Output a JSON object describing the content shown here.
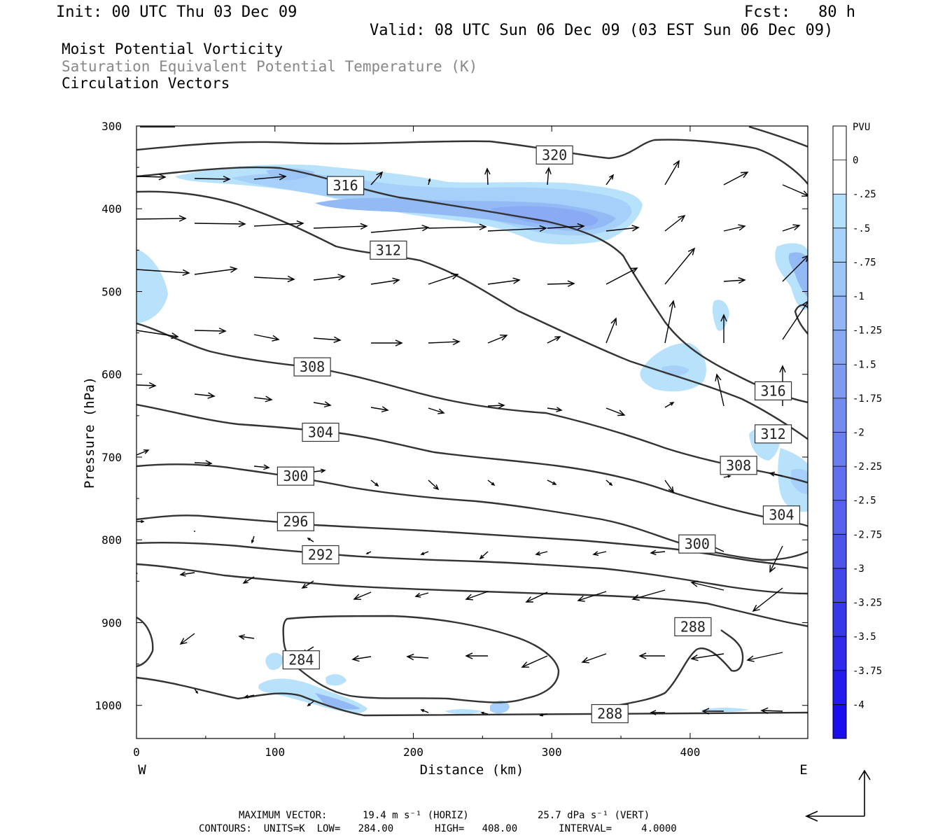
{
  "header": {
    "init": "Init: 00 UTC Thu 03 Dec 09",
    "fcst": "Fcst:   80 h",
    "valid": "Valid: 08 UTC Sun 06 Dec 09 (03 EST Sun 06 Dec 09)"
  },
  "titles": {
    "line1": "Moist Potential Vorticity",
    "line2": "Saturation Equivalent Potential Temperature (K)",
    "line3": "Circulation Vectors"
  },
  "chart_data": {
    "type": "cross-section",
    "xlabel": "Distance (km)",
    "ylabel": "Pressure (hPa)",
    "xlim": [
      0,
      485
    ],
    "ylim": [
      300,
      1040
    ],
    "y_inverted": true,
    "x_ticks": [
      "0",
      "100",
      "200",
      "300",
      "400"
    ],
    "y_ticks": [
      "300",
      "400",
      "500",
      "600",
      "700",
      "800",
      "900",
      "1000"
    ],
    "x_end_labels": {
      "left": "W",
      "right": "E"
    },
    "contour_labels": [
      {
        "text": "320",
        "x": 302,
        "p": 335
      },
      {
        "text": "316",
        "x": 151,
        "p": 372
      },
      {
        "text": "312",
        "x": 182,
        "p": 450
      },
      {
        "text": "308",
        "x": 127,
        "p": 591
      },
      {
        "text": "304",
        "x": 133,
        "p": 670
      },
      {
        "text": "300",
        "x": 115,
        "p": 723
      },
      {
        "text": "296",
        "x": 115,
        "p": 778
      },
      {
        "text": "292",
        "x": 133,
        "p": 818
      },
      {
        "text": "288",
        "x": 402,
        "p": 905
      },
      {
        "text": "284",
        "x": 119,
        "p": 945
      },
      {
        "text": "288",
        "x": 342,
        "p": 1010
      },
      {
        "text": "316",
        "x": 460,
        "p": 620
      },
      {
        "text": "312",
        "x": 460,
        "p": 672
      },
      {
        "text": "308",
        "x": 435,
        "p": 710
      },
      {
        "text": "304",
        "x": 466,
        "p": 770
      },
      {
        "text": "300",
        "x": 405,
        "p": 805
      }
    ],
    "pv_legend": {
      "unit": "PVU",
      "labels": [
        "0",
        "-.25",
        "-.5",
        "-.75",
        "-1",
        "-1.25",
        "-1.5",
        "-1.75",
        "-2",
        "-2.25",
        "-2.5",
        "-2.75",
        "-3",
        "-3.25",
        "-3.5",
        "-3.75",
        "-4"
      ],
      "colors": [
        "#ffffff",
        "#ffffff",
        "#b4e0fb",
        "#a8d2f9",
        "#9cc4f7",
        "#92b6f5",
        "#88a8f3",
        "#7e9af1",
        "#748cf0",
        "#6a7eef",
        "#6070ee",
        "#5662ed",
        "#4c54ec",
        "#4246eb",
        "#3838eb",
        "#2e2aeb",
        "#241cec",
        "#1a0eee"
      ]
    },
    "contours": {
      "units": "K",
      "low": "284.00",
      "high": "408.00",
      "interval": "4.0000"
    },
    "max_vector": {
      "horiz": "19.4 m s⁻¹ (HORIZ)",
      "vert": "25.7 dPa s⁻¹ (VERT)"
    }
  },
  "footer": {
    "max_vector_label": "MAXIMUM VECTOR:",
    "max_vector_horiz": "19.4 m s⁻¹ (HORIZ)",
    "max_vector_vert": "25.7 dPa s⁻¹ (VERT)",
    "contours_line": "CONTOURS:  UNITS=K  LOW=   284.00       HIGH=   408.00       INTERVAL=     4.0000"
  }
}
